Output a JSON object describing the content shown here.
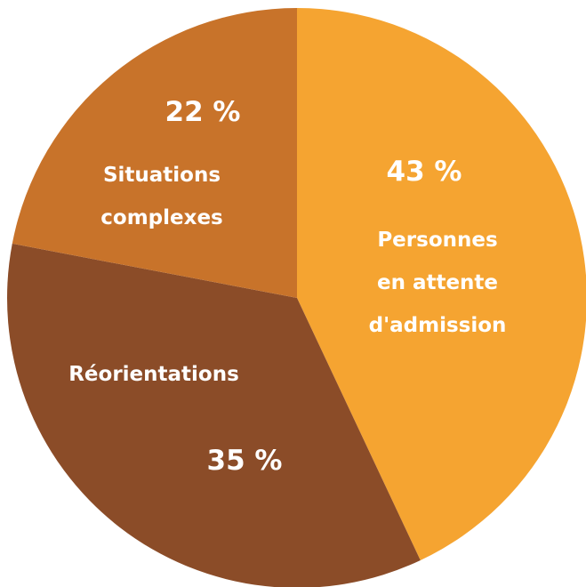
{
  "chart_data": {
    "type": "pie",
    "categories": [
      "Personnes\nen attente\nd'admission",
      "Réorientations",
      "Situations\ncomplexes"
    ],
    "values": [
      43,
      35,
      22
    ],
    "value_labels": [
      "43 %",
      "35 %",
      "22 %"
    ],
    "colors": [
      "#f5a431",
      "#8b4c28",
      "#c8732a"
    ]
  }
}
